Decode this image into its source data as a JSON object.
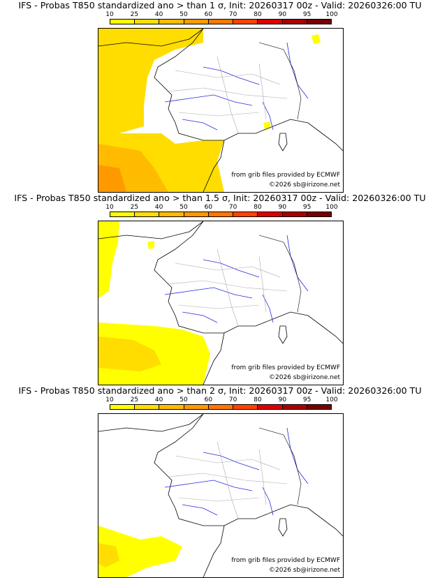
{
  "colorbar": {
    "labels": [
      "10",
      "25",
      "40",
      "50",
      "60",
      "70",
      "80",
      "90",
      "95",
      "100"
    ],
    "colors": [
      "#ffff00",
      "#ffdd00",
      "#ffbb00",
      "#ff9900",
      "#ff7700",
      "#ff4400",
      "#dd0000",
      "#aa0000",
      "#770000"
    ]
  },
  "colors": {
    "coast": "#000000",
    "rivers": "#2a2adf",
    "borders": "#aaaaaa"
  },
  "credits": {
    "source": "from grib files provided by ECMWF",
    "copyright": "©2026 sb@irizone.net"
  },
  "panels": [
    {
      "title": "IFS - Probas T850  standardized ano > than 1 σ, Init: 20260317 00z - Valid: 20260326:00 TU",
      "threshold": "1 σ"
    },
    {
      "title": "IFS - Probas T850  standardized ano > than 1.5 σ, Init: 20260317 00z - Valid: 20260326:00 TU",
      "threshold": "1.5 σ"
    },
    {
      "title": "IFS - Probas T850  standardized ano > than 2 σ, Init: 20260317 00z - Valid: 20260326:00 TU",
      "threshold": "2 σ"
    }
  ]
}
